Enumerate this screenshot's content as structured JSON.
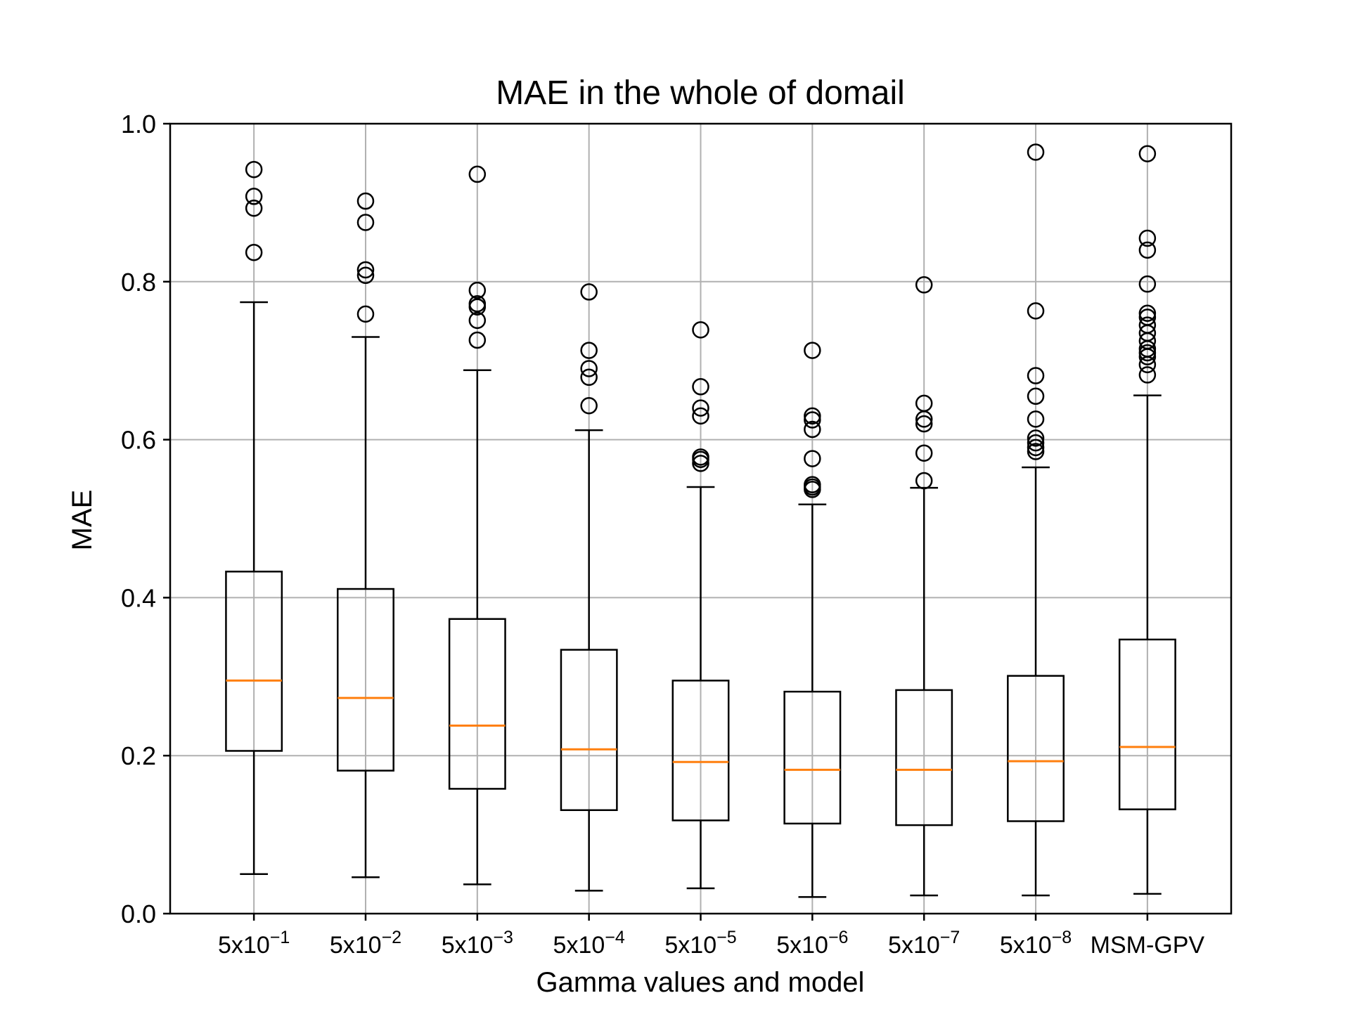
{
  "chart_data": {
    "type": "boxplot",
    "title": "MAE in the whole of domail",
    "xlabel": "Gamma values and model",
    "ylabel": "MAE",
    "ylim": [
      0.0,
      1.0
    ],
    "yticks": [
      "0.0",
      "0.2",
      "0.4",
      "0.6",
      "0.8",
      "1.0"
    ],
    "grid": true,
    "colors": {
      "box": "#000000",
      "median": "#ff7f0e",
      "grid": "#b0b0b0"
    },
    "categories": [
      {
        "label": "5x10",
        "exp": "−1"
      },
      {
        "label": "5x10",
        "exp": "−2"
      },
      {
        "label": "5x10",
        "exp": "−3"
      },
      {
        "label": "5x10",
        "exp": "−4"
      },
      {
        "label": "5x10",
        "exp": "−5"
      },
      {
        "label": "5x10",
        "exp": "−6"
      },
      {
        "label": "5x10",
        "exp": "−7"
      },
      {
        "label": "5x10",
        "exp": "−8"
      },
      {
        "label": "MSM-GPV",
        "exp": ""
      }
    ],
    "boxes": [
      {
        "whislo": 0.05,
        "q1": 0.206,
        "med": 0.295,
        "q3": 0.433,
        "whishi": 0.774,
        "fliers": [
          0.942,
          0.908,
          0.893,
          0.837
        ]
      },
      {
        "whislo": 0.046,
        "q1": 0.181,
        "med": 0.273,
        "q3": 0.411,
        "whishi": 0.73,
        "fliers": [
          0.902,
          0.875,
          0.815,
          0.808,
          0.759
        ]
      },
      {
        "whislo": 0.037,
        "q1": 0.158,
        "med": 0.238,
        "q3": 0.373,
        "whishi": 0.688,
        "fliers": [
          0.936,
          0.789,
          0.772,
          0.768,
          0.751,
          0.726
        ]
      },
      {
        "whislo": 0.029,
        "q1": 0.131,
        "med": 0.208,
        "q3": 0.334,
        "whishi": 0.612,
        "fliers": [
          0.787,
          0.713,
          0.69,
          0.679,
          0.643
        ]
      },
      {
        "whislo": 0.032,
        "q1": 0.118,
        "med": 0.192,
        "q3": 0.295,
        "whishi": 0.54,
        "fliers": [
          0.739,
          0.667,
          0.64,
          0.63,
          0.578,
          0.575,
          0.57
        ]
      },
      {
        "whislo": 0.021,
        "q1": 0.114,
        "med": 0.182,
        "q3": 0.281,
        "whishi": 0.518,
        "fliers": [
          0.713,
          0.63,
          0.625,
          0.613,
          0.576,
          0.543,
          0.54,
          0.537
        ]
      },
      {
        "whislo": 0.023,
        "q1": 0.112,
        "med": 0.182,
        "q3": 0.283,
        "whishi": 0.539,
        "fliers": [
          0.796,
          0.646,
          0.626,
          0.62,
          0.583,
          0.548
        ]
      },
      {
        "whislo": 0.023,
        "q1": 0.117,
        "med": 0.193,
        "q3": 0.301,
        "whishi": 0.565,
        "fliers": [
          0.964,
          0.763,
          0.681,
          0.655,
          0.626,
          0.602,
          0.596,
          0.59,
          0.585
        ]
      },
      {
        "whislo": 0.025,
        "q1": 0.132,
        "med": 0.211,
        "q3": 0.347,
        "whishi": 0.656,
        "fliers": [
          0.962,
          0.855,
          0.84,
          0.797,
          0.76,
          0.755,
          0.745,
          0.735,
          0.725,
          0.715,
          0.71,
          0.705,
          0.695,
          0.682
        ]
      }
    ]
  }
}
